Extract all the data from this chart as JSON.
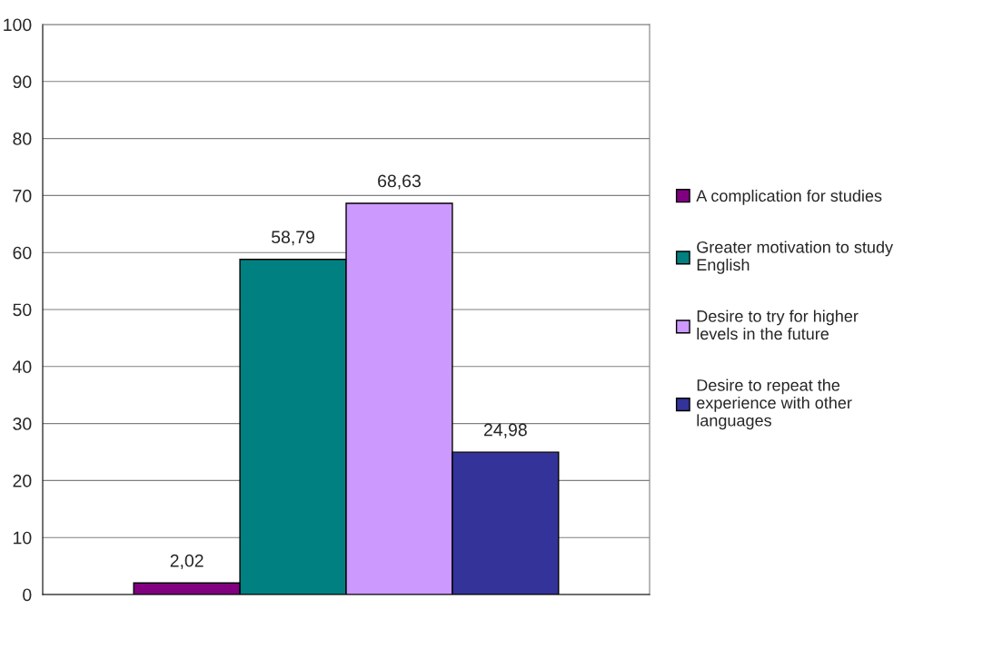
{
  "chart_data": {
    "type": "bar",
    "categories": [
      null
    ],
    "series": [
      {
        "name": "A complication for studies",
        "color": "#800080",
        "values": [
          2.02
        ],
        "value_labels": [
          "2,02"
        ]
      },
      {
        "name": "Greater motivation to study\nEnglish",
        "color": "#008080",
        "values": [
          58.79
        ],
        "value_labels": [
          "58,79"
        ]
      },
      {
        "name": "Desire to try for higher\nlevels in the future",
        "color": "#cc99ff",
        "values": [
          68.63
        ],
        "value_labels": [
          "68,63"
        ]
      },
      {
        "name": "Desire to repeat the\nexperience with other\nlanguages",
        "color": "#333399",
        "values": [
          24.98
        ],
        "value_labels": [
          "24,98"
        ]
      }
    ],
    "ylim": [
      0,
      100
    ],
    "yticks": [
      0,
      10,
      20,
      30,
      40,
      50,
      60,
      70,
      80,
      90,
      100
    ],
    "grid": "y",
    "legend": "right"
  }
}
